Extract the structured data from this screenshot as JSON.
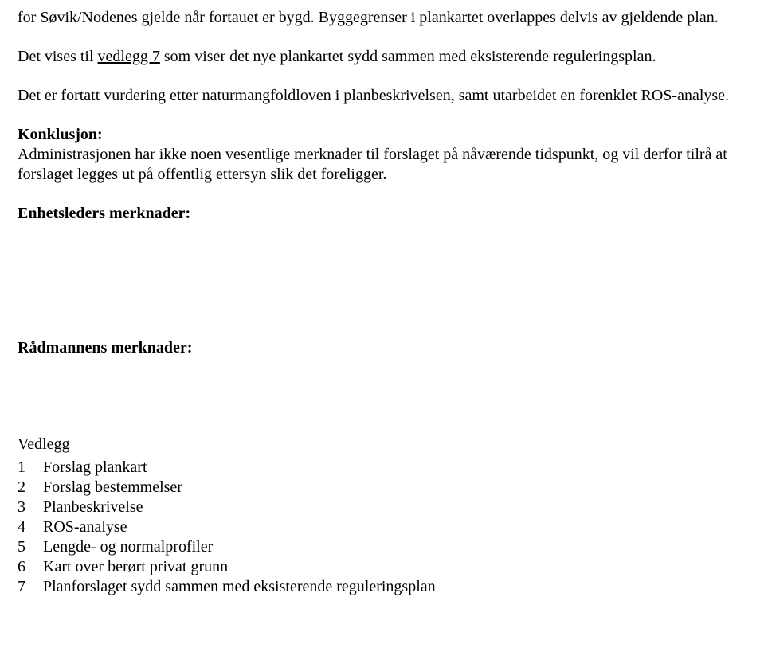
{
  "para1_a": "for Søvik/Nodenes gjelde når fortauet er bygd. Byggegrenser i plankartet overlappes delvis av gjeldende plan.",
  "para2_a": "Det vises til ",
  "para2_b_link": "vedlegg 7",
  "para2_c": " som viser det nye plankartet sydd sammen med eksisterende reguleringsplan.",
  "para3": " Det er fortatt vurdering etter naturmangfoldloven i planbeskrivelsen, samt utarbeidet en forenklet ROS-analyse.",
  "konk_heading": "Konklusjon:",
  "konk_body": "Administrasjonen har ikke noen vesentlige merknader til forslaget på nåværende tidspunkt, og vil derfor tilrå at forslaget legges ut på offentlig ettersyn slik det foreligger.",
  "enhetsleder": "Enhetsleders merknader:",
  "radmannen": "Rådmannens merknader:",
  "vedlegg_label": "Vedlegg",
  "vedlegg": [
    {
      "n": "1",
      "t": "Forslag plankart"
    },
    {
      "n": "2",
      "t": "Forslag bestemmelser"
    },
    {
      "n": "3",
      "t": "Planbeskrivelse"
    },
    {
      "n": "4",
      "t": "ROS-analyse"
    },
    {
      "n": "5",
      "t": "Lengde- og normalprofiler"
    },
    {
      "n": "6",
      "t": "Kart over berørt privat grunn"
    },
    {
      "n": "7",
      "t": "Planforslaget sydd sammen med eksisterende reguleringsplan"
    }
  ]
}
